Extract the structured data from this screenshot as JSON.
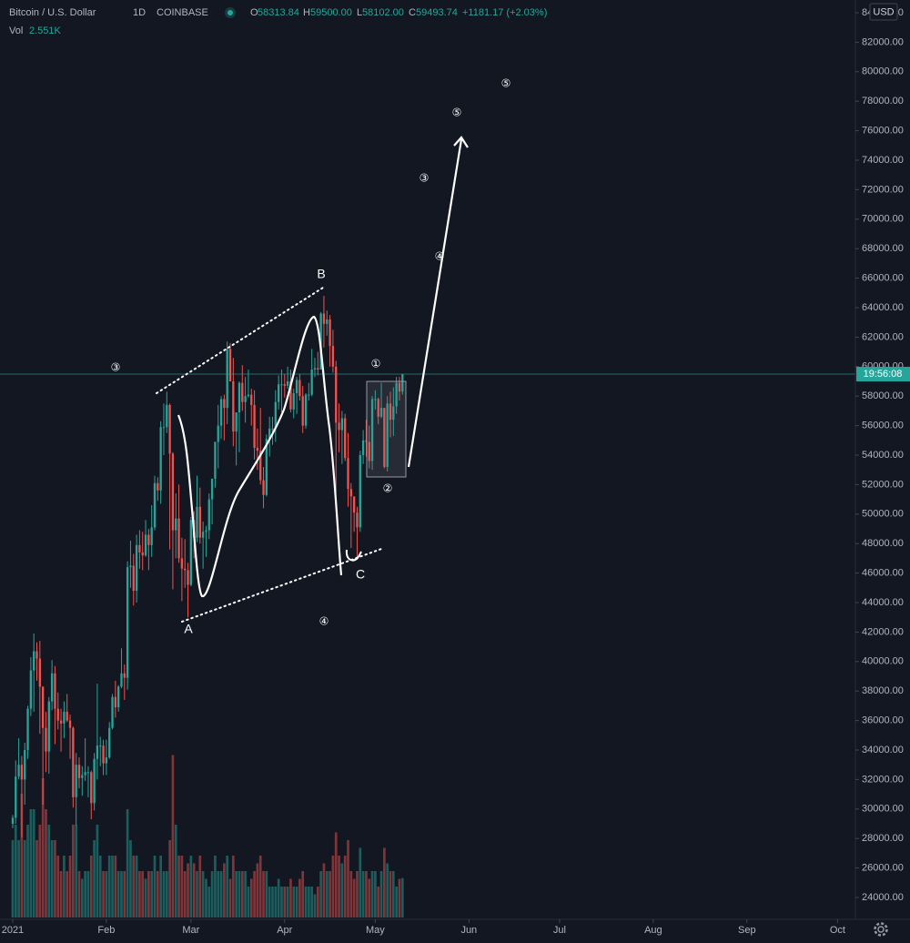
{
  "header": {
    "symbol": "Bitcoin / U.S. Dollar",
    "interval": "1D",
    "exchange": "COINBASE",
    "ohlc": [
      {
        "label": "O",
        "value": "58313.84"
      },
      {
        "label": "H",
        "value": "59500.00"
      },
      {
        "label": "L",
        "value": "58102.00"
      },
      {
        "label": "C",
        "value": "59493.74"
      }
    ],
    "change": "+1181.17 (+2.03%)",
    "volume": {
      "label": "Vol",
      "value": "2.551K"
    }
  },
  "chart_data": {
    "type": "candlestick",
    "currency": "USD",
    "price_tag": "19:56:08",
    "up_color": "#26a69a",
    "down_color": "#ef5350",
    "grid": false,
    "xlim": [
      -4.2,
      278.9
    ],
    "ylim": [
      22519,
      84864
    ],
    "volume_ylim": [
      0,
      12
    ],
    "xticks": [
      {
        "value": 0,
        "label": "2021"
      },
      {
        "value": 31,
        "label": "Feb"
      },
      {
        "value": 59,
        "label": "Mar"
      },
      {
        "value": 90,
        "label": "Apr"
      },
      {
        "value": 120,
        "label": "May"
      },
      {
        "value": 151,
        "label": "Jun"
      },
      {
        "value": 181,
        "label": "Jul"
      },
      {
        "value": 212,
        "label": "Aug"
      },
      {
        "value": 243,
        "label": "Sep"
      },
      {
        "value": 273,
        "label": "Oct"
      }
    ],
    "yticks": [
      {
        "value": 24000,
        "label": "24000.00"
      },
      {
        "value": 26000,
        "label": "26000.00"
      },
      {
        "value": 28000,
        "label": "28000.00"
      },
      {
        "value": 30000,
        "label": "30000.00"
      },
      {
        "value": 32000,
        "label": "32000.00"
      },
      {
        "value": 34000,
        "label": "34000.00"
      },
      {
        "value": 36000,
        "label": "36000.00"
      },
      {
        "value": 38000,
        "label": "38000.00"
      },
      {
        "value": 40000,
        "label": "40000.00"
      },
      {
        "value": 42000,
        "label": "42000.00"
      },
      {
        "value": 44000,
        "label": "44000.00"
      },
      {
        "value": 46000,
        "label": "46000.00"
      },
      {
        "value": 48000,
        "label": "48000.00"
      },
      {
        "value": 50000,
        "label": "50000.00"
      },
      {
        "value": 52000,
        "label": "52000.00"
      },
      {
        "value": 54000,
        "label": "54000.00"
      },
      {
        "value": 56000,
        "label": "56000.00"
      },
      {
        "value": 58000,
        "label": "58000.00"
      },
      {
        "value": 60000,
        "label": "60000.00"
      },
      {
        "value": 62000,
        "label": "62000.00"
      },
      {
        "value": 64000,
        "label": "64000.00"
      },
      {
        "value": 66000,
        "label": "66000.00"
      },
      {
        "value": 68000,
        "label": "68000.00"
      },
      {
        "value": 70000,
        "label": "70000.00"
      },
      {
        "value": 72000,
        "label": "72000.00"
      },
      {
        "value": 74000,
        "label": "74000.00"
      },
      {
        "value": 76000,
        "label": "76000.00"
      },
      {
        "value": 78000,
        "label": "78000.00"
      },
      {
        "value": 80000,
        "label": "80000.00"
      },
      {
        "value": 82000,
        "label": "82000.00"
      },
      {
        "value": 84000,
        "label": "84000.00"
      }
    ],
    "annotations": [
      "③",
      "①",
      "②",
      "④",
      "③",
      "④",
      "⑤",
      "⑤",
      "B",
      "A",
      "C"
    ],
    "x": [
      0,
      1,
      2,
      3,
      4,
      5,
      6,
      7,
      8,
      9,
      10,
      11,
      12,
      13,
      14,
      15,
      16,
      17,
      18,
      19,
      20,
      21,
      22,
      23,
      24,
      25,
      26,
      27,
      28,
      29,
      30,
      31,
      32,
      33,
      34,
      35,
      36,
      37,
      38,
      39,
      40,
      41,
      42,
      43,
      44,
      45,
      46,
      47,
      48,
      49,
      50,
      51,
      52,
      53,
      54,
      55,
      56,
      57,
      58,
      59,
      60,
      61,
      62,
      63,
      64,
      65,
      66,
      67,
      68,
      69,
      70,
      71,
      72,
      73,
      74,
      75,
      76,
      77,
      78,
      79,
      80,
      81,
      82,
      83,
      84,
      85,
      86,
      87,
      88,
      89,
      90,
      91,
      92,
      93,
      94,
      95,
      96,
      97,
      98,
      99,
      100,
      101,
      102,
      103,
      104,
      105,
      106,
      107,
      108,
      109,
      110,
      111,
      112,
      113,
      114,
      115,
      116,
      117,
      118,
      119,
      120,
      121,
      122,
      123,
      124,
      125,
      126,
      127,
      128,
      129
    ],
    "open": [
      29000,
      29400,
      32200,
      33000,
      32000,
      34000,
      36800,
      39400,
      40700,
      40200,
      38300,
      35500,
      33900,
      37300,
      39200,
      36800,
      36000,
      35800,
      36600,
      36000,
      35500,
      30800,
      33000,
      32100,
      32300,
      32500,
      32500,
      30400,
      33400,
      34300,
      34300,
      33100,
      33500,
      35500,
      37600,
      36900,
      38300,
      39200,
      38900,
      46400,
      46500,
      44800,
      47900,
      47400,
      47200,
      48600,
      47900,
      49100,
      52100,
      51600,
      55900,
      55900,
      57400,
      54100,
      48900,
      49700,
      47000,
      46300,
      46200,
      45200,
      49600,
      48400,
      50500,
      48400,
      48800,
      48900,
      51000,
      52400,
      54900,
      56000,
      57800,
      57200,
      61200,
      59000,
      55600,
      56900,
      58900,
      57600,
      58000,
      58100,
      57400,
      54500,
      54300,
      52300,
      51300,
      55100,
      55800,
      55800,
      57600,
      58800,
      58800,
      58700,
      59000,
      57100,
      58200,
      59100,
      58000,
      56000,
      58100,
      58100,
      59800,
      59900,
      59800,
      63600,
      62900,
      63200,
      61400,
      60000,
      56200,
      55700,
      56500,
      53800,
      51700,
      51200,
      50100,
      49100,
      54000,
      55000,
      54900,
      53600,
      57800,
      57800,
      56600,
      57200,
      53200,
      57500,
      56400,
      57300,
      58900,
      58313.84
    ],
    "high": [
      29600,
      33300,
      34800,
      33600,
      34500,
      37000,
      40300,
      41900,
      41300,
      41400,
      38300,
      36600,
      37600,
      40100,
      39700,
      37900,
      36800,
      37300,
      37800,
      36400,
      35600,
      33800,
      33500,
      32900,
      34800,
      32900,
      32600,
      33800,
      38500,
      34900,
      34700,
      34700,
      35900,
      37800,
      38700,
      38400,
      40900,
      39800,
      46800,
      48200,
      47300,
      48600,
      48900,
      48800,
      49600,
      49000,
      50600,
      52600,
      52500,
      56300,
      57500,
      58300,
      57500,
      54200,
      51400,
      52000,
      48400,
      48300,
      46700,
      49800,
      50200,
      52600,
      51800,
      49500,
      49200,
      51400,
      52400,
      54900,
      57400,
      58000,
      58100,
      61700,
      61600,
      60600,
      56900,
      59000,
      60100,
      59300,
      59800,
      58500,
      58400,
      55800,
      57200,
      53200,
      55400,
      56600,
      56600,
      58400,
      59400,
      59800,
      59500,
      60000,
      59800,
      58500,
      59300,
      59500,
      58700,
      58200,
      58900,
      61200,
      60600,
      61000,
      63700,
      64800,
      63800,
      63500,
      62500,
      60400,
      57500,
      57000,
      56800,
      55500,
      52100,
      51200,
      50500,
      54300,
      55700,
      56400,
      56000,
      58000,
      58400,
      57900,
      58900,
      57200,
      58000,
      58300,
      58600,
      59300,
      59300,
      59500
    ],
    "low": [
      28700,
      29000,
      32000,
      28100,
      30300,
      33400,
      36300,
      36600,
      38700,
      35100,
      30300,
      32500,
      32400,
      36700,
      34400,
      35400,
      33900,
      34800,
      35900,
      33400,
      30100,
      28900,
      31400,
      30900,
      31900,
      30800,
      29300,
      29900,
      32000,
      32900,
      32300,
      32300,
      33400,
      35400,
      36200,
      36600,
      38200,
      37400,
      38100,
      45000,
      43800,
      44000,
      46300,
      46200,
      47100,
      46200,
      47100,
      48900,
      50900,
      50700,
      54000,
      55500,
      47600,
      44900,
      47000,
      46700,
      44100,
      45000,
      43000,
      45100,
      47000,
      48100,
      48000,
      46300,
      47100,
      48300,
      49300,
      51800,
      53100,
      55100,
      55000,
      56100,
      59000,
      54600,
      53300,
      54200,
      57000,
      56200,
      57900,
      56000,
      53700,
      53000,
      52000,
      50400,
      51200,
      53900,
      54700,
      54900,
      57100,
      56900,
      57900,
      58500,
      56900,
      56500,
      56800,
      57700,
      55500,
      55800,
      57700,
      58000,
      59300,
      59400,
      59800,
      61300,
      62100,
      60000,
      59600,
      51500,
      54200,
      53400,
      53600,
      50500,
      47700,
      48800,
      47000,
      48800,
      53400,
      53900,
      53100,
      53000,
      57100,
      56100,
      56500,
      53100,
      52900,
      55200,
      55300,
      56800,
      57700,
      58102
    ],
    "close": [
      29400,
      32200,
      33000,
      32000,
      34000,
      36800,
      39400,
      40700,
      40200,
      38300,
      35500,
      33900,
      37300,
      39200,
      36800,
      36000,
      35800,
      36600,
      36000,
      35500,
      30800,
      33000,
      32100,
      32300,
      32500,
      32500,
      30400,
      33400,
      34300,
      34300,
      33100,
      33500,
      35500,
      37600,
      36900,
      38300,
      39200,
      38900,
      46400,
      46500,
      44800,
      47900,
      47400,
      47200,
      48600,
      47900,
      49100,
      52100,
      51600,
      55900,
      55900,
      57400,
      54100,
      48900,
      49700,
      47000,
      46300,
      46200,
      45200,
      49600,
      48400,
      50500,
      48400,
      48800,
      48900,
      51000,
      52400,
      54900,
      56000,
      57800,
      57200,
      61200,
      59000,
      55600,
      56900,
      58900,
      57600,
      58000,
      58100,
      57400,
      54500,
      54300,
      52300,
      51300,
      55100,
      55800,
      55800,
      57600,
      58800,
      58800,
      58700,
      59000,
      57100,
      58200,
      59100,
      58000,
      56000,
      58100,
      58100,
      59800,
      59900,
      59800,
      63600,
      62900,
      63200,
      61400,
      60000,
      56200,
      55700,
      56500,
      53800,
      51700,
      51200,
      50100,
      49100,
      54000,
      55000,
      54900,
      53600,
      57800,
      57800,
      56600,
      57200,
      53200,
      57500,
      56400,
      57300,
      58900,
      58313.84,
      59493.74
    ],
    "volume": [
      5,
      6,
      5,
      8,
      5,
      6,
      7,
      7,
      5,
      6,
      9,
      7,
      6,
      5,
      5,
      4,
      3,
      4,
      3,
      4,
      6,
      6,
      3,
      2.5,
      3,
      3,
      4,
      5,
      6,
      4,
      3,
      3,
      4,
      4,
      4,
      3,
      3,
      3,
      7,
      5,
      4,
      4,
      3,
      3,
      2.5,
      3,
      3,
      4,
      3,
      4,
      3,
      3,
      5,
      10.5,
      6,
      4,
      4,
      3,
      3.5,
      4,
      3.5,
      3,
      4,
      3,
      2.5,
      2,
      3,
      4,
      3,
      3,
      3.5,
      4,
      2.5,
      4,
      3,
      3,
      3,
      3,
      2,
      2.5,
      3,
      3.5,
      4,
      3,
      3,
      2,
      2,
      2,
      2.5,
      2,
      2,
      2,
      2.5,
      2,
      2,
      2.5,
      3,
      2,
      2,
      2,
      1.5,
      2,
      3,
      3.5,
      3,
      3,
      4,
      5.5,
      4,
      3.5,
      4,
      5,
      3,
      2.5,
      3,
      4.5,
      3,
      3,
      2.5,
      3,
      3,
      2,
      3,
      4.5,
      3.5,
      3,
      3,
      2,
      2.5,
      2.551
    ]
  }
}
